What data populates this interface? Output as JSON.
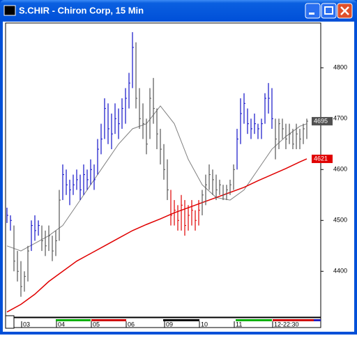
{
  "chart_data": {
    "type": "ohlc",
    "title": "S.CHIR - Chiron Corp, 15 Min",
    "xlim": [
      -0.4,
      90
    ],
    "ylim": [
      4310,
      4888
    ],
    "yticks": [
      4400,
      4500,
      4600,
      4700,
      4800
    ],
    "xticks": [
      {
        "value": 5,
        "label": "03"
      },
      {
        "value": 15,
        "label": "04"
      },
      {
        "value": 25,
        "label": "05"
      },
      {
        "value": 35,
        "label": "06"
      },
      {
        "value": 46,
        "label": "09"
      },
      {
        "value": 56,
        "label": "10"
      },
      {
        "value": 66,
        "label": "11"
      },
      {
        "value": 77,
        "label": "12-22:30"
      }
    ],
    "series": [
      {
        "color": "#1010c8",
        "x": [
          0,
          1,
          7,
          8,
          9,
          16,
          17,
          18,
          19,
          20,
          21,
          22,
          23,
          24,
          25,
          26,
          27,
          28,
          29,
          30,
          31,
          32,
          33,
          34,
          35,
          36,
          66,
          67,
          68,
          69,
          70,
          71,
          72,
          73,
          74,
          75,
          76
        ],
        "high": [
          4525,
          4510,
          4500,
          4510,
          4500,
          4610,
          4600,
          4580,
          4590,
          4600,
          4590,
          4610,
          4600,
          4620,
          4610,
          4660,
          4690,
          4740,
          4730,
          4710,
          4730,
          4720,
          4740,
          4760,
          4790,
          4870,
          4680,
          4740,
          4750,
          4720,
          4700,
          4710,
          4690,
          4700,
          4750,
          4770,
          4760
        ],
        "low": [
          4495,
          4480,
          4440,
          4460,
          4470,
          4540,
          4550,
          4530,
          4550,
          4560,
          4540,
          4550,
          4560,
          4570,
          4560,
          4590,
          4630,
          4660,
          4650,
          4640,
          4670,
          4660,
          4680,
          4690,
          4720,
          4760,
          4600,
          4650,
          4690,
          4670,
          4660,
          4670,
          4660,
          4660,
          4690,
          4710,
          4680
        ],
        "close": [
          4510,
          4500,
          4490,
          4480,
          4490,
          4590,
          4570,
          4560,
          4570,
          4580,
          4560,
          4590,
          4580,
          4600,
          4580,
          4640,
          4660,
          4720,
          4680,
          4670,
          4700,
          4690,
          4720,
          4740,
          4770,
          4840,
          4660,
          4710,
          4730,
          4690,
          4680,
          4690,
          4680,
          4690,
          4740,
          4740,
          4700
        ]
      },
      {
        "color": "#555555",
        "x": [
          2,
          3,
          4,
          5,
          6,
          10,
          11,
          12,
          13,
          14,
          15,
          37,
          38,
          39,
          40,
          41,
          42,
          43,
          44,
          45,
          46,
          56,
          57,
          58,
          59,
          60,
          61,
          62,
          63,
          64,
          65,
          77,
          78,
          79,
          80,
          81,
          82,
          83,
          84,
          85,
          86
        ],
        "high": [
          4490,
          4440,
          4420,
          4400,
          4450,
          4490,
          4480,
          4490,
          4470,
          4480,
          4560,
          4850,
          4760,
          4730,
          4700,
          4760,
          4780,
          4720,
          4680,
          4650,
          4620,
          4560,
          4590,
          4610,
          4600,
          4590,
          4580,
          4570,
          4570,
          4580,
          4610,
          4700,
          4700,
          4700,
          4690,
          4690,
          4680,
          4690,
          4680,
          4690,
          4700
        ],
        "low": [
          4400,
          4380,
          4350,
          4360,
          4380,
          4440,
          4430,
          4440,
          4420,
          4430,
          4460,
          4720,
          4680,
          4660,
          4630,
          4660,
          4690,
          4640,
          4610,
          4580,
          4540,
          4510,
          4530,
          4560,
          4550,
          4540,
          4550,
          4540,
          4540,
          4550,
          4560,
          4620,
          4640,
          4660,
          4640,
          4650,
          4640,
          4640,
          4640,
          4650,
          4660
        ],
        "close": [
          4420,
          4400,
          4370,
          4390,
          4440,
          4460,
          4450,
          4470,
          4440,
          4460,
          4540,
          4740,
          4700,
          4690,
          4650,
          4740,
          4720,
          4670,
          4640,
          4600,
          4560,
          4550,
          4570,
          4590,
          4580,
          4560,
          4570,
          4550,
          4560,
          4570,
          4600,
          4660,
          4690,
          4680,
          4660,
          4670,
          4650,
          4670,
          4660,
          4680,
          4695
        ]
      },
      {
        "color": "#e00000",
        "x": [
          47,
          48,
          49,
          50,
          51,
          52,
          53,
          54,
          55
        ],
        "high": [
          4560,
          4540,
          4530,
          4550,
          4540,
          4530,
          4540,
          4520,
          4540
        ],
        "low": [
          4490,
          4490,
          4480,
          4480,
          4470,
          4480,
          4490,
          4480,
          4490
        ],
        "close": [
          4510,
          4520,
          4500,
          4530,
          4490,
          4510,
          4520,
          4500,
          4520
        ]
      }
    ],
    "lines": [
      {
        "color": "#808080",
        "x": [
          0,
          4,
          8,
          12,
          16,
          20,
          24,
          28,
          32,
          36,
          40,
          44,
          48,
          52,
          56,
          60,
          64,
          68,
          72,
          76,
          80,
          84,
          86
        ],
        "values": [
          4450,
          4440,
          4455,
          4470,
          4490,
          4530,
          4570,
          4610,
          4650,
          4680,
          4690,
          4725,
          4690,
          4620,
          4570,
          4545,
          4540,
          4560,
          4600,
          4640,
          4665,
          4685,
          4690
        ]
      },
      {
        "color": "#e00000",
        "x": [
          0,
          4,
          8,
          12,
          16,
          20,
          24,
          28,
          32,
          36,
          40,
          44,
          48,
          52,
          56,
          60,
          64,
          68,
          72,
          76,
          80,
          84,
          86
        ],
        "values": [
          4320,
          4335,
          4355,
          4380,
          4400,
          4420,
          4435,
          4450,
          4465,
          4480,
          4492,
          4503,
          4515,
          4525,
          4535,
          4545,
          4555,
          4565,
          4578,
          4590,
          4602,
          4615,
          4621
        ]
      }
    ],
    "price_tags": [
      {
        "value": 4695,
        "color": "#505050"
      },
      {
        "value": 4621,
        "color": "#e00000"
      }
    ]
  }
}
